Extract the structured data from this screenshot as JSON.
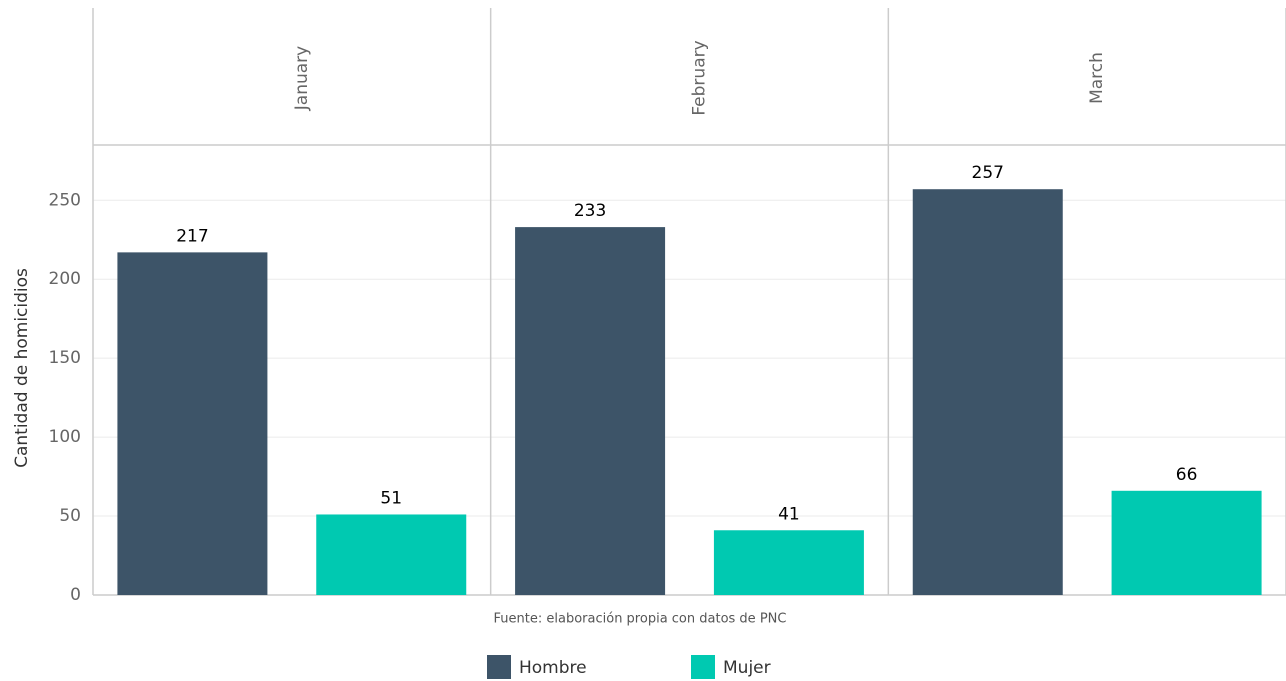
{
  "chart_data": {
    "type": "bar",
    "y_label": "Cantidad de homicidios",
    "caption": "Fuente: elaboración propia con datos de PNC",
    "categories": [
      "January",
      "February",
      "March"
    ],
    "series": [
      {
        "name": "Hombre",
        "color": "#3d5468",
        "values": [
          217,
          233,
          257
        ]
      },
      {
        "name": "Mujer",
        "color": "#00c9b1",
        "values": [
          51,
          41,
          66
        ]
      }
    ],
    "ylim": [
      0,
      285
    ],
    "yticks": [
      0,
      50,
      100,
      150,
      200,
      250
    ],
    "grid": true,
    "legend": "bottom"
  }
}
